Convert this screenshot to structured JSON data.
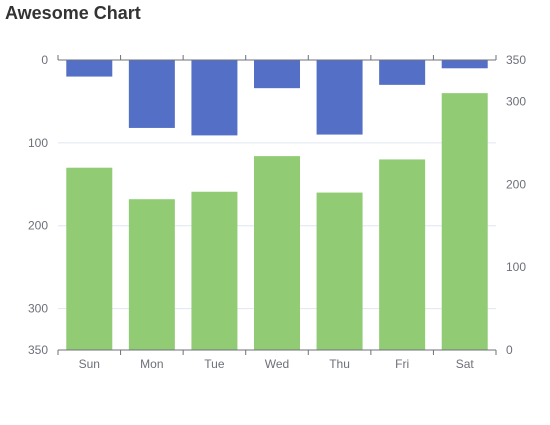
{
  "chart_data": {
    "type": "bar",
    "title": "Awesome Chart",
    "categories": [
      "Sun",
      "Mon",
      "Tue",
      "Wed",
      "Thu",
      "Fri",
      "Sat"
    ],
    "series": [
      {
        "axis": "left-inverted",
        "color": "#5470c6",
        "values": [
          20,
          82,
          91,
          34,
          90,
          30,
          10
        ]
      },
      {
        "axis": "right",
        "color": "#91cc75",
        "values": [
          220,
          182,
          191,
          234,
          190,
          230,
          310
        ]
      }
    ],
    "left_axis": {
      "inverted": true,
      "ylim": [
        0,
        350
      ],
      "ticks": [
        0,
        100,
        200,
        300,
        350
      ]
    },
    "right_axis": {
      "ylim": [
        0,
        350
      ],
      "ticks": [
        0,
        100,
        200,
        300,
        350
      ]
    },
    "grid": true,
    "legend": "none"
  }
}
